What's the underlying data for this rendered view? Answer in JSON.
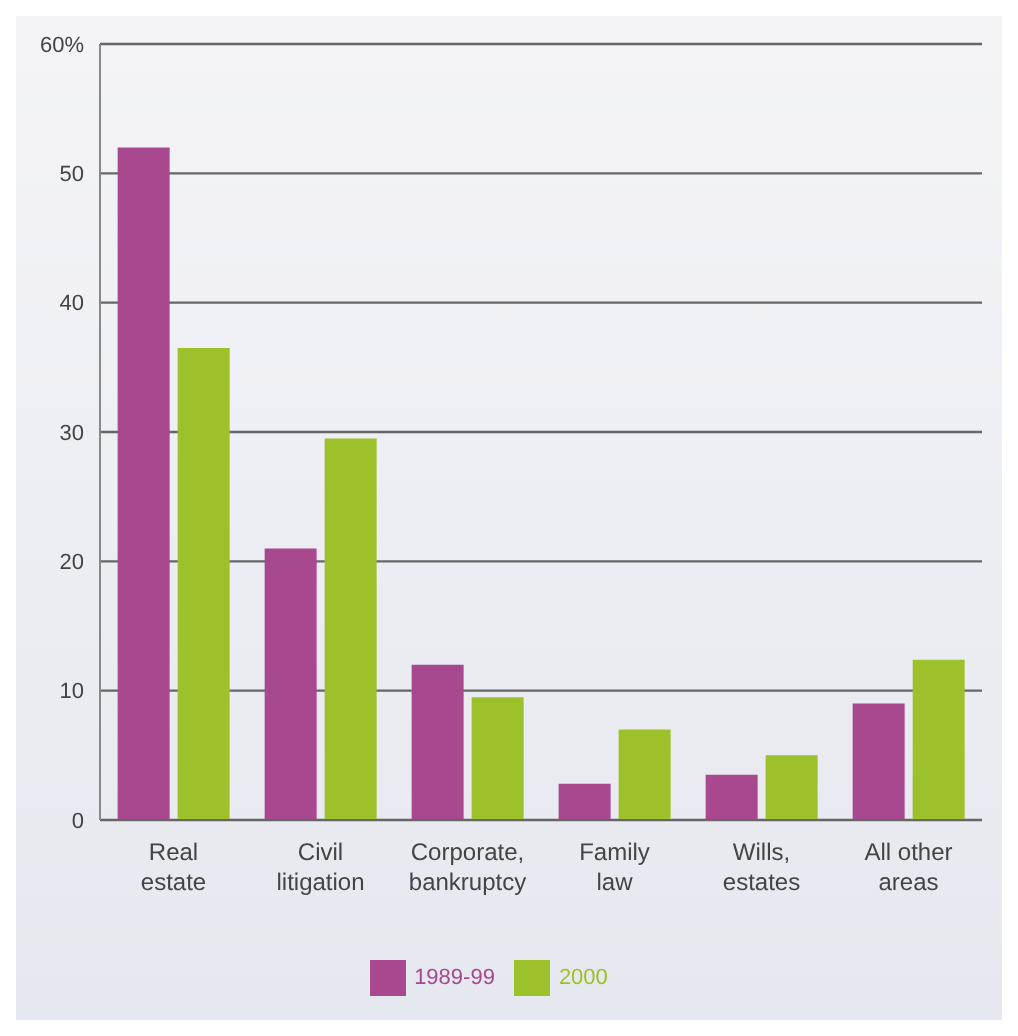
{
  "chart_data": {
    "type": "bar",
    "categories": [
      "Real\nestate",
      "Civil\nlitigation",
      "Corporate,\nbankruptcy",
      "Family\nlaw",
      "Wills,\nestates",
      "All other\nareas"
    ],
    "series": [
      {
        "name": "1989-99",
        "color": "#a8488e",
        "values": [
          52,
          21,
          12,
          2.8,
          3.5,
          9
        ]
      },
      {
        "name": "2000",
        "color": "#9dc12a",
        "values": [
          36.5,
          29.5,
          9.5,
          7,
          5,
          12.4
        ]
      }
    ],
    "ylim": [
      0,
      60
    ],
    "yticks": [
      0,
      10,
      20,
      30,
      40,
      50,
      {
        "value": 60,
        "label": "60%"
      }
    ],
    "grid": "y",
    "legend": "bottom"
  }
}
